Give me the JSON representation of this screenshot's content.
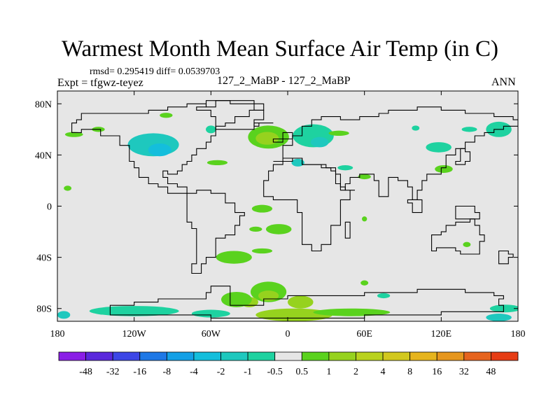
{
  "title": "Warmest Month Mean Surface Air Temp (in C)",
  "stats": "rmsd= 0.295419 diff= 0.0539703",
  "expt": "Expt = tfgwz-teyez",
  "center_label": "127_2_MaBP - 127_2_MaBP",
  "season": "ANN",
  "map": {
    "lon_range": [
      -180,
      180
    ],
    "lat_range": [
      -90,
      90
    ],
    "background_color": "#e6e6e6",
    "lon_ticks": [
      {
        "value": -180,
        "label": "180"
      },
      {
        "value": -120,
        "label": "120W"
      },
      {
        "value": -60,
        "label": "60W"
      },
      {
        "value": 0,
        "label": "0"
      },
      {
        "value": 60,
        "label": "60E"
      },
      {
        "value": 120,
        "label": "120E"
      },
      {
        "value": 180,
        "label": "180"
      }
    ],
    "lat_ticks": [
      {
        "value": 80,
        "label": "80N"
      },
      {
        "value": 40,
        "label": "40N"
      },
      {
        "value": 0,
        "label": "0"
      },
      {
        "value": -40,
        "label": "40S"
      },
      {
        "value": -80,
        "label": "80S"
      }
    ]
  },
  "colorbar": {
    "colors": [
      "#8a1ee6",
      "#5a28dc",
      "#3c46e6",
      "#1e78e6",
      "#14a0e6",
      "#14bedc",
      "#1ec8be",
      "#1ed2a0",
      "#e6e6e6",
      "#5ad21e",
      "#96d21e",
      "#b9d21e",
      "#d2c81e",
      "#e6b41e",
      "#e6961e",
      "#e6641e",
      "#e63c14"
    ],
    "labels": [
      "-48",
      "-32",
      "-16",
      "-8",
      "-4",
      "-2",
      "-1",
      "-0.5",
      "0.5",
      "1",
      "2",
      "4",
      "8",
      "16",
      "32",
      "48"
    ]
  },
  "anomalies": [
    {
      "lon": -105,
      "lat": 48,
      "rx": 20,
      "ry": 9,
      "color": "#1ec8be"
    },
    {
      "lon": -100,
      "lat": 44,
      "rx": 9,
      "ry": 5,
      "color": "#14bedc"
    },
    {
      "lon": -15,
      "lat": 54,
      "rx": 16,
      "ry": 9,
      "color": "#5ad21e"
    },
    {
      "lon": -16,
      "lat": 53,
      "rx": 9,
      "ry": 5,
      "color": "#96d21e"
    },
    {
      "lon": -167,
      "lat": 56,
      "rx": 7,
      "ry": 2,
      "color": "#5ad21e"
    },
    {
      "lon": -148,
      "lat": 60,
      "rx": 5,
      "ry": 2,
      "color": "#5ad21e"
    },
    {
      "lon": -172,
      "lat": 14,
      "rx": 3,
      "ry": 2,
      "color": "#5ad21e"
    },
    {
      "lon": -20,
      "lat": -2,
      "rx": 8,
      "ry": 3,
      "color": "#5ad21e"
    },
    {
      "lon": -42,
      "lat": -40,
      "rx": 14,
      "ry": 5,
      "color": "#5ad21e"
    },
    {
      "lon": -15,
      "lat": -67,
      "rx": 14,
      "ry": 8,
      "color": "#5ad21e"
    },
    {
      "lon": -15,
      "lat": -70,
      "rx": 8,
      "ry": 4,
      "color": "#96d21e"
    },
    {
      "lon": -30,
      "lat": -75,
      "rx": 7,
      "ry": 4,
      "color": "#96d21e"
    },
    {
      "lon": 10,
      "lat": -75,
      "rx": 10,
      "ry": 5,
      "color": "#96d21e"
    },
    {
      "lon": 5,
      "lat": -85,
      "rx": 30,
      "ry": 5,
      "color": "#96d21e"
    },
    {
      "lon": 50,
      "lat": -83,
      "rx": 30,
      "ry": 3,
      "color": "#5ad21e"
    },
    {
      "lon": -40,
      "lat": -73,
      "rx": 12,
      "ry": 6,
      "color": "#5ad21e"
    },
    {
      "lon": -7,
      "lat": -18,
      "rx": 10,
      "ry": 4,
      "color": "#5ad21e"
    },
    {
      "lon": -25,
      "lat": -18,
      "rx": 5,
      "ry": 2,
      "color": "#5ad21e"
    },
    {
      "lon": -120,
      "lat": -82,
      "rx": 35,
      "ry": 4,
      "color": "#1ed2a0"
    },
    {
      "lon": -60,
      "lat": -84,
      "rx": 15,
      "ry": 3,
      "color": "#1ed2a0"
    },
    {
      "lon": 170,
      "lat": -80,
      "rx": 12,
      "ry": 3,
      "color": "#1ed2a0"
    },
    {
      "lon": -175,
      "lat": -85,
      "rx": 5,
      "ry": 3,
      "color": "#1ec8be"
    },
    {
      "lon": 165,
      "lat": -87,
      "rx": 10,
      "ry": 3,
      "color": "#1ec8be"
    },
    {
      "lon": 20,
      "lat": 55,
      "rx": 16,
      "ry": 9,
      "color": "#1ed2a0"
    },
    {
      "lon": 25,
      "lat": 50,
      "rx": 7,
      "ry": 4,
      "color": "#1ec8be"
    },
    {
      "lon": 40,
      "lat": 57,
      "rx": 8,
      "ry": 2,
      "color": "#5ad21e"
    },
    {
      "lon": 8,
      "lat": 34,
      "rx": 5,
      "ry": 3,
      "color": "#1ec8be"
    },
    {
      "lon": 45,
      "lat": 30,
      "rx": 6,
      "ry": 2,
      "color": "#1ed2a0"
    },
    {
      "lon": 60,
      "lat": 23,
      "rx": 5,
      "ry": 2,
      "color": "#5ad21e"
    },
    {
      "lon": 122,
      "lat": 29,
      "rx": 7,
      "ry": 3,
      "color": "#5ad21e"
    },
    {
      "lon": 118,
      "lat": 46,
      "rx": 10,
      "ry": 4,
      "color": "#1ed2a0"
    },
    {
      "lon": 165,
      "lat": 60,
      "rx": 10,
      "ry": 6,
      "color": "#1ed2a0"
    },
    {
      "lon": 142,
      "lat": 60,
      "rx": 6,
      "ry": 2,
      "color": "#1ed2a0"
    },
    {
      "lon": 100,
      "lat": 61,
      "rx": 3,
      "ry": 2,
      "color": "#1ed2a0"
    },
    {
      "lon": -95,
      "lat": 71,
      "rx": 5,
      "ry": 2,
      "color": "#5ad21e"
    },
    {
      "lon": -60,
      "lat": 60,
      "rx": 4,
      "ry": 3,
      "color": "#1ed2a0"
    },
    {
      "lon": -55,
      "lat": 34,
      "rx": 8,
      "ry": 2,
      "color": "#5ad21e"
    },
    {
      "lon": -20,
      "lat": -35,
      "rx": 8,
      "ry": 2,
      "color": "#5ad21e"
    },
    {
      "lon": 75,
      "lat": -70,
      "rx": 5,
      "ry": 2,
      "color": "#1ed2a0"
    },
    {
      "lon": 60,
      "lat": -60,
      "rx": 3,
      "ry": 2,
      "color": "#5ad21e"
    },
    {
      "lon": 140,
      "lat": -30,
      "rx": 3,
      "ry": 2,
      "color": "#5ad21e"
    },
    {
      "lon": 60,
      "lat": -10,
      "rx": 2,
      "ry": 2,
      "color": "#5ad21e"
    }
  ],
  "coastlines": [
    [
      [
        -165,
        68
      ],
      [
        -160,
        72
      ],
      [
        -140,
        72
      ],
      [
        -125,
        72
      ],
      [
        -110,
        76
      ],
      [
        -95,
        78
      ],
      [
        -80,
        80
      ],
      [
        -65,
        78
      ],
      [
        -55,
        82
      ],
      [
        -45,
        82
      ],
      [
        -25,
        80
      ],
      [
        -20,
        75
      ],
      [
        -30,
        70
      ],
      [
        -40,
        65
      ],
      [
        -50,
        62
      ],
      [
        -55,
        55
      ],
      [
        -60,
        50
      ],
      [
        -65,
        45
      ],
      [
        -72,
        41
      ],
      [
        -76,
        36
      ],
      [
        -80,
        32
      ],
      [
        -82,
        27
      ],
      [
        -85,
        25
      ],
      [
        -95,
        28
      ],
      [
        -97,
        22
      ],
      [
        -92,
        18
      ],
      [
        -85,
        15
      ],
      [
        -80,
        9
      ],
      [
        -85,
        10
      ],
      [
        -92,
        14
      ],
      [
        -100,
        18
      ],
      [
        -108,
        23
      ],
      [
        -115,
        30
      ],
      [
        -120,
        35
      ],
      [
        -124,
        40
      ],
      [
        -125,
        48
      ],
      [
        -130,
        55
      ],
      [
        -145,
        60
      ],
      [
        -160,
        58
      ],
      [
        -168,
        65
      ],
      [
        -165,
        68
      ]
    ],
    [
      [
        -80,
        10
      ],
      [
        -72,
        12
      ],
      [
        -60,
        10
      ],
      [
        -50,
        2
      ],
      [
        -40,
        -4
      ],
      [
        -35,
        -8
      ],
      [
        -38,
        -15
      ],
      [
        -42,
        -22
      ],
      [
        -48,
        -26
      ],
      [
        -55,
        -35
      ],
      [
        -58,
        -40
      ],
      [
        -65,
        -45
      ],
      [
        -68,
        -53
      ],
      [
        -72,
        -53
      ],
      [
        -74,
        -45
      ],
      [
        -73,
        -35
      ],
      [
        -71,
        -25
      ],
      [
        -70,
        -18
      ],
      [
        -76,
        -12
      ],
      [
        -80,
        -4
      ],
      [
        -80,
        2
      ],
      [
        -78,
        8
      ],
      [
        -80,
        10
      ]
    ],
    [
      [
        -10,
        36
      ],
      [
        -5,
        44
      ],
      [
        -2,
        48
      ],
      [
        5,
        54
      ],
      [
        10,
        57
      ],
      [
        12,
        62
      ],
      [
        18,
        68
      ],
      [
        28,
        71
      ],
      [
        40,
        68
      ],
      [
        55,
        70
      ],
      [
        70,
        73
      ],
      [
        80,
        74
      ],
      [
        100,
        78
      ],
      [
        120,
        74
      ],
      [
        140,
        72
      ],
      [
        160,
        70
      ],
      [
        175,
        68
      ],
      [
        180,
        66
      ],
      [
        180,
        62
      ],
      [
        170,
        60
      ],
      [
        160,
        58
      ],
      [
        155,
        54
      ],
      [
        145,
        50
      ],
      [
        140,
        45
      ],
      [
        130,
        40
      ],
      [
        125,
        35
      ],
      [
        122,
        30
      ],
      [
        120,
        25
      ],
      [
        110,
        20
      ],
      [
        105,
        12
      ],
      [
        100,
        4
      ],
      [
        98,
        15
      ],
      [
        93,
        20
      ],
      [
        88,
        22
      ],
      [
        80,
        15
      ],
      [
        78,
        8
      ],
      [
        72,
        20
      ],
      [
        66,
        25
      ],
      [
        58,
        25
      ],
      [
        55,
        22
      ],
      [
        50,
        18
      ],
      [
        44,
        12
      ],
      [
        43,
        18
      ],
      [
        36,
        28
      ],
      [
        34,
        31
      ],
      [
        30,
        31
      ],
      [
        25,
        32
      ],
      [
        20,
        32
      ],
      [
        12,
        33
      ],
      [
        10,
        37
      ],
      [
        5,
        37
      ],
      [
        -5,
        36
      ],
      [
        -10,
        36
      ]
    ],
    [
      [
        -17,
        21
      ],
      [
        -16,
        28
      ],
      [
        -10,
        32
      ],
      [
        -5,
        36
      ],
      [
        5,
        37
      ],
      [
        10,
        37
      ],
      [
        12,
        33
      ],
      [
        20,
        32
      ],
      [
        25,
        32
      ],
      [
        30,
        31
      ],
      [
        34,
        31
      ],
      [
        36,
        24
      ],
      [
        40,
        15
      ],
      [
        44,
        12
      ],
      [
        51,
        12
      ],
      [
        48,
        5
      ],
      [
        40,
        -5
      ],
      [
        40,
        -15
      ],
      [
        35,
        -24
      ],
      [
        32,
        -29
      ],
      [
        27,
        -34
      ],
      [
        20,
        -35
      ],
      [
        17,
        -29
      ],
      [
        12,
        -17
      ],
      [
        12,
        -6
      ],
      [
        9,
        2
      ],
      [
        8,
        5
      ],
      [
        4,
        6
      ],
      [
        -2,
        5
      ],
      [
        -8,
        4
      ],
      [
        -13,
        8
      ],
      [
        -17,
        14
      ],
      [
        -17,
        21
      ]
    ],
    [
      [
        114,
        -22
      ],
      [
        120,
        -20
      ],
      [
        125,
        -14
      ],
      [
        130,
        -12
      ],
      [
        137,
        -12
      ],
      [
        142,
        -11
      ],
      [
        145,
        -15
      ],
      [
        150,
        -22
      ],
      [
        153,
        -28
      ],
      [
        150,
        -37
      ],
      [
        145,
        -38
      ],
      [
        140,
        -38
      ],
      [
        135,
        -35
      ],
      [
        130,
        -32
      ],
      [
        124,
        -33
      ],
      [
        116,
        -34
      ],
      [
        114,
        -28
      ],
      [
        114,
        -22
      ]
    ],
    [
      [
        -60,
        -63
      ],
      [
        -45,
        -77
      ],
      [
        -20,
        -72
      ],
      [
        0,
        -70
      ],
      [
        20,
        -70
      ],
      [
        40,
        -69
      ],
      [
        60,
        -67
      ],
      [
        80,
        -67
      ],
      [
        100,
        -66
      ],
      [
        120,
        -66
      ],
      [
        140,
        -67
      ],
      [
        160,
        -70
      ],
      [
        170,
        -72
      ],
      [
        165,
        -77
      ],
      [
        170,
        -83
      ],
      [
        120,
        -86
      ],
      [
        60,
        -87
      ],
      [
        0,
        -87
      ],
      [
        -60,
        -86
      ],
      [
        -110,
        -84
      ],
      [
        -140,
        -78
      ],
      [
        -120,
        -74
      ],
      [
        -100,
        -72
      ],
      [
        -75,
        -72
      ],
      [
        -65,
        -68
      ],
      [
        -60,
        -63
      ]
    ],
    [
      [
        -55,
        60
      ],
      [
        -45,
        60
      ],
      [
        -25,
        68
      ],
      [
        -20,
        75
      ],
      [
        -25,
        80
      ],
      [
        -45,
        82
      ],
      [
        -55,
        82
      ],
      [
        -65,
        78
      ],
      [
        -70,
        76
      ],
      [
        -60,
        70
      ],
      [
        -55,
        60
      ]
    ],
    [
      [
        -10,
        52
      ],
      [
        -5,
        58
      ],
      [
        0,
        58
      ],
      [
        2,
        52
      ],
      [
        -5,
        50
      ],
      [
        -10,
        52
      ]
    ],
    [
      [
        45,
        -12
      ],
      [
        50,
        -15
      ],
      [
        50,
        -25
      ],
      [
        44,
        -25
      ],
      [
        45,
        -12
      ]
    ],
    [
      [
        130,
        32
      ],
      [
        140,
        36
      ],
      [
        142,
        42
      ],
      [
        140,
        44
      ],
      [
        135,
        35
      ],
      [
        130,
        32
      ]
    ],
    [
      [
        -25,
        64
      ],
      [
        -15,
        66
      ],
      [
        -13,
        65
      ],
      [
        -22,
        63
      ],
      [
        -25,
        64
      ]
    ],
    [
      [
        95,
        5
      ],
      [
        105,
        -6
      ],
      [
        106,
        -5
      ],
      [
        98,
        3
      ],
      [
        95,
        5
      ]
    ],
    [
      [
        132,
        -1
      ],
      [
        145,
        -5
      ],
      [
        150,
        -10
      ],
      [
        141,
        -9
      ],
      [
        132,
        -1
      ]
    ],
    [
      [
        166,
        -45
      ],
      [
        174,
        -41
      ],
      [
        178,
        -38
      ],
      [
        172,
        -34
      ],
      [
        166,
        -45
      ]
    ]
  ]
}
